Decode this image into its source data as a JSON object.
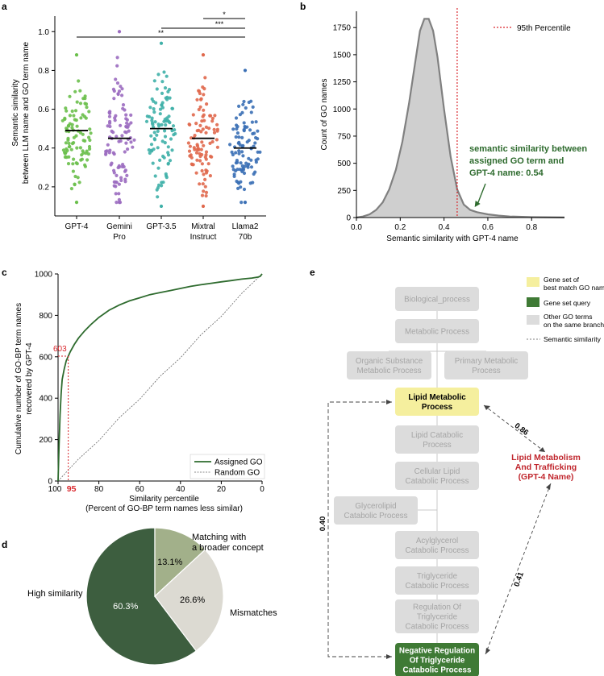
{
  "panel_labels": [
    "a",
    "b",
    "c",
    "d",
    "e"
  ],
  "colors": {
    "gpt4": "#6abf4b",
    "gemini": "#9b6cc0",
    "gpt35": "#3fb0a8",
    "mixtral": "#e0684c",
    "llama": "#3a6fb5",
    "green_dark": "#2e6b2e",
    "pie_dark": "#3d5e3f",
    "pie_mid": "#a2b08a",
    "pie_light": "#dcdad2",
    "node_gray": "#dcdcdc",
    "node_yellow": "#f5ef9e",
    "node_green": "#3f7a35",
    "red": "#c0262d",
    "hist_fill": "#cfcfcf",
    "hist_line": "#808080"
  },
  "chart_data": [
    {
      "id": "a",
      "type": "scatter",
      "ylabel": "Semantic similarity\nbetween LLM name and GO term name",
      "ylim": [
        0.05,
        1.08
      ],
      "yticks": [
        0.2,
        0.4,
        0.6,
        0.8,
        1.0
      ],
      "ytick_labels": [
        "0.2",
        "0.4",
        "0.6",
        "0.8",
        "1.0"
      ],
      "categories": [
        [
          "GPT-4"
        ],
        [
          "Gemini",
          "Pro"
        ],
        [
          "GPT-3.5"
        ],
        [
          "Mixtral",
          "Instruct"
        ],
        [
          "Llama2",
          "70b"
        ]
      ],
      "medians": [
        0.49,
        0.45,
        0.5,
        0.45,
        0.4
      ],
      "spreads": [
        {
          "min": 0.12,
          "max": 0.88
        },
        {
          "min": 0.12,
          "max": 1.0
        },
        {
          "min": 0.1,
          "max": 0.94
        },
        {
          "min": 0.1,
          "max": 0.88
        },
        {
          "min": 0.12,
          "max": 0.8
        }
      ],
      "significance": [
        {
          "from": 4,
          "to": 5,
          "label": "*"
        },
        {
          "from": 3,
          "to": 5,
          "label": "***"
        },
        {
          "from": 1,
          "to": 5,
          "label": "**"
        }
      ]
    },
    {
      "id": "b",
      "type": "area",
      "xlabel": "Semantic similarity with GPT-4 name",
      "ylabel": "Count of GO names",
      "xlim": [
        0,
        0.95
      ],
      "ylim": [
        0,
        1900
      ],
      "xticks": [
        0.0,
        0.2,
        0.4,
        0.6,
        0.8
      ],
      "xtick_labels": [
        "0.0",
        "0.2",
        "0.4",
        "0.6",
        "0.8"
      ],
      "yticks": [
        0,
        250,
        500,
        750,
        1000,
        1250,
        1500,
        1750
      ],
      "ytick_labels": [
        "0",
        "250",
        "500",
        "750",
        "1000",
        "1250",
        "1500",
        "1750"
      ],
      "x": [
        0.0,
        0.03,
        0.06,
        0.09,
        0.12,
        0.15,
        0.18,
        0.21,
        0.24,
        0.27,
        0.29,
        0.31,
        0.33,
        0.35,
        0.37,
        0.4,
        0.43,
        0.46,
        0.49,
        0.52,
        0.55,
        0.6,
        0.65,
        0.7,
        0.8,
        0.95
      ],
      "y": [
        0,
        10,
        30,
        70,
        140,
        260,
        440,
        700,
        1050,
        1450,
        1720,
        1830,
        1830,
        1720,
        1480,
        1000,
        560,
        260,
        120,
        70,
        50,
        30,
        18,
        10,
        4,
        1
      ],
      "percentile_x": 0.46,
      "legend": "95th Percentile",
      "annotation": [
        "semantic similarity between",
        "assigned GO term and",
        "GPT-4 name: 0.54"
      ],
      "annotation_x": 0.54
    },
    {
      "id": "c",
      "type": "line",
      "xlabel": [
        "Similarity percentile",
        "(Percent of GO-BP term names less similar)"
      ],
      "ylabel": [
        "Cumulative number of GO-BP term names",
        "recovered by GPT-4"
      ],
      "xlim": [
        100,
        0
      ],
      "ylim": [
        0,
        1000
      ],
      "xticks": [
        100,
        80,
        60,
        40,
        20,
        0
      ],
      "xtick_labels": [
        "100",
        "80",
        "60",
        "40",
        "20",
        "0"
      ],
      "yticks": [
        0,
        200,
        400,
        600,
        800,
        1000
      ],
      "ytick_labels": [
        "0",
        "200",
        "400",
        "600",
        "800",
        "1000"
      ],
      "marker_x": 95,
      "marker_y": 603,
      "marker_x_label": "95",
      "marker_y_label": "603",
      "series": [
        {
          "name": "Assigned GO",
          "x": [
            100,
            99.5,
            99,
            98.5,
            98,
            97,
            96,
            95,
            94,
            92,
            90,
            87,
            84,
            80,
            75,
            70,
            65,
            60,
            55,
            50,
            45,
            40,
            35,
            30,
            25,
            20,
            15,
            10,
            5,
            2,
            1,
            0
          ],
          "y": [
            0,
            180,
            320,
            420,
            490,
            540,
            580,
            603,
            625,
            660,
            690,
            725,
            755,
            790,
            825,
            850,
            870,
            885,
            900,
            910,
            920,
            930,
            940,
            948,
            955,
            962,
            968,
            975,
            980,
            985,
            988,
            1000
          ]
        },
        {
          "name": "Random GO",
          "x": [
            100,
            90,
            80,
            70,
            60,
            50,
            40,
            30,
            20,
            10,
            0
          ],
          "y": [
            0,
            100,
            200,
            300,
            400,
            500,
            600,
            700,
            800,
            900,
            1000
          ]
        }
      ]
    },
    {
      "id": "d",
      "type": "pie",
      "slices": [
        {
          "label": "High similarity",
          "value": 60.3,
          "pct_label": "60.3%"
        },
        {
          "label": "Matching with a broader concept",
          "value": 13.1,
          "pct_label": "13.1%"
        },
        {
          "label": "Mismatches",
          "value": 26.6,
          "pct_label": "26.6%"
        }
      ],
      "outer_labels": {
        "high": "High similarity",
        "broader": [
          "Matching with",
          "a broader concept"
        ],
        "mismatch": "Mismatches"
      }
    }
  ],
  "diagram_e": {
    "legend": [
      [
        "Gene set of",
        "best match GO name"
      ],
      [
        "Gene set query"
      ],
      [
        "Other GO terms",
        "on the same branch"
      ],
      [
        "Semantic similarity"
      ]
    ],
    "nodes": [
      {
        "id": "bio",
        "lines": [
          "Biological_process"
        ]
      },
      {
        "id": "meta",
        "lines": [
          "Metabolic Process"
        ]
      },
      {
        "id": "organic",
        "lines": [
          "Organic Substance",
          "Metabolic Process"
        ]
      },
      {
        "id": "primary",
        "lines": [
          "Primary Metabolic",
          "Process"
        ]
      },
      {
        "id": "lipid",
        "lines": [
          "Lipid Metabolic",
          "Process"
        ]
      },
      {
        "id": "lipidcat",
        "lines": [
          "Lipid Catabolic",
          "Process"
        ]
      },
      {
        "id": "cellular",
        "lines": [
          "Cellular Lipid",
          "Catabolic Process"
        ]
      },
      {
        "id": "glycero",
        "lines": [
          "Glycerolipid",
          "Catabolic Process"
        ]
      },
      {
        "id": "acyl",
        "lines": [
          "Acylglycerol",
          "Catabolic Process"
        ]
      },
      {
        "id": "trig",
        "lines": [
          "Triglyceride",
          "Catabolic Process"
        ]
      },
      {
        "id": "reg",
        "lines": [
          "Regulation Of",
          "Triglyceride",
          "Catabolic Process"
        ]
      },
      {
        "id": "neg",
        "lines": [
          "Negative Regulation",
          "Of Triglyceride",
          "Catabolic Process"
        ]
      }
    ],
    "gpt_name": [
      "Lipid Metabolism",
      "And Trafficking",
      "(GPT-4 Name)"
    ],
    "sim_values": [
      "0.86",
      "0.41",
      "0.40"
    ]
  }
}
